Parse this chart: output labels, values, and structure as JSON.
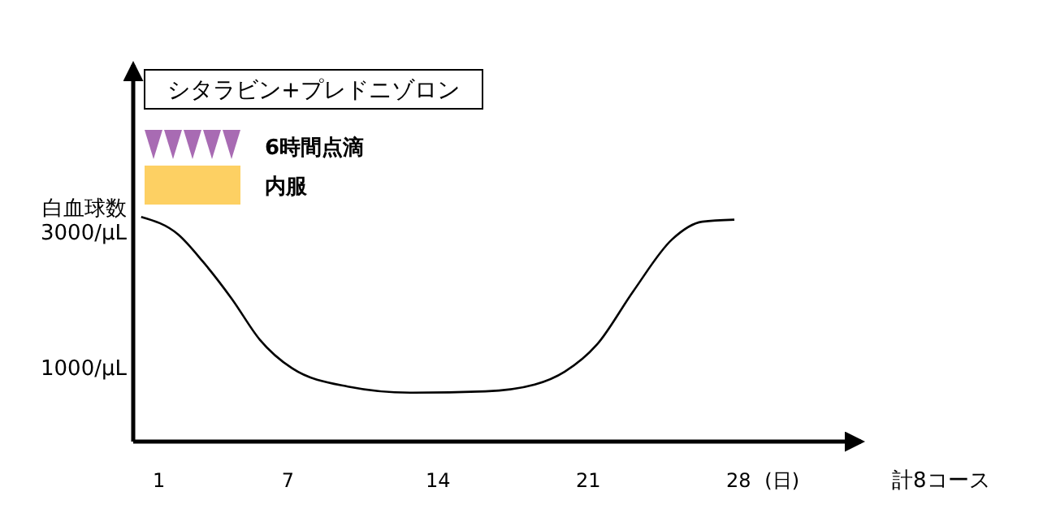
{
  "chart_data": {
    "type": "line",
    "title": "シタラビン+プレドニゾロン",
    "ylabel": "白血球数",
    "xlabel": "(日)",
    "annotations": [
      "6時間点滴",
      "内服",
      "計8コース"
    ],
    "x": [
      0.17,
      1.9,
      3.05,
      4.4,
      5.7,
      7.2,
      9.8,
      12.7,
      16.2,
      18.5,
      19.9,
      21.4,
      23.1,
      24.9,
      26.3,
      27.8
    ],
    "series": [
      {
        "color": "#000000",
        "values": [
          3210,
          2950,
          2550,
          2000,
          1400,
          980,
          710,
          620,
          640,
          740,
          930,
          1330,
          2120,
          2880,
          3140,
          3170
        ]
      }
    ],
    "xlim": [
      -0.2,
      33.7
    ],
    "ylim": [
      -100,
      5450
    ],
    "xticks": [
      1,
      7,
      14,
      21,
      28
    ],
    "yticks": [
      {
        "value": 1000,
        "label": "1000/μL"
      },
      {
        "value": 3000,
        "label": "3000/μL"
      }
    ],
    "marker": "none",
    "line_style": "solid"
  }
}
